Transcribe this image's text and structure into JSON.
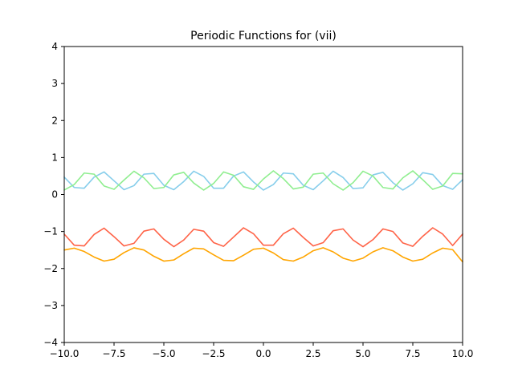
{
  "chart_data": {
    "type": "line",
    "title": "Periodic Functions for (vii)",
    "xlabel": "",
    "ylabel": "",
    "xlim": [
      -10,
      10
    ],
    "ylim": [
      -4,
      4
    ],
    "grid": false,
    "legend": "none",
    "x_ticks": [
      -10,
      -7.5,
      -5,
      -2.5,
      0,
      2.5,
      5,
      7.5,
      10
    ],
    "x_tick_labels": [
      "−10.0",
      "−7.5",
      "−5.0",
      "−2.5",
      "0.0",
      "2.5",
      "5.0",
      "7.5",
      "10.0"
    ],
    "y_ticks": [
      -4,
      -3,
      -2,
      -1,
      0,
      1,
      2,
      3,
      4
    ],
    "y_tick_labels": [
      "−4",
      "−3",
      "−2",
      "−1",
      "0",
      "1",
      "2",
      "3",
      "4"
    ],
    "x": [
      -10,
      -9.5,
      -9,
      -8.5,
      -8,
      -7.5,
      -7,
      -6.5,
      -6,
      -5.5,
      -5,
      -4.5,
      -4,
      -3.5,
      -3,
      -2.5,
      -2,
      -1.5,
      -1,
      -0.5,
      0,
      0.5,
      1,
      1.5,
      2,
      2.5,
      3,
      3.5,
      4,
      4.5,
      5,
      5.5,
      6,
      6.5,
      7,
      7.5,
      8,
      8.5,
      9,
      9.5,
      10
    ],
    "series": [
      {
        "color": "#87ceeb",
        "values": [
          0.47,
          0.19,
          0.17,
          0.47,
          0.61,
          0.37,
          0.13,
          0.24,
          0.55,
          0.57,
          0.25,
          0.13,
          0.35,
          0.63,
          0.49,
          0.17,
          0.17,
          0.5,
          0.61,
          0.34,
          0.12,
          0.27,
          0.58,
          0.56,
          0.25,
          0.13,
          0.37,
          0.63,
          0.46,
          0.16,
          0.18,
          0.53,
          0.6,
          0.32,
          0.12,
          0.29,
          0.59,
          0.54,
          0.24,
          0.14,
          0.4
        ]
      },
      {
        "color": "#90ee90",
        "values": [
          0.12,
          0.27,
          0.58,
          0.55,
          0.23,
          0.14,
          0.39,
          0.63,
          0.45,
          0.16,
          0.19,
          0.53,
          0.6,
          0.31,
          0.12,
          0.3,
          0.61,
          0.52,
          0.21,
          0.14,
          0.42,
          0.64,
          0.43,
          0.15,
          0.2,
          0.55,
          0.58,
          0.29,
          0.12,
          0.32,
          0.63,
          0.5,
          0.19,
          0.15,
          0.45,
          0.64,
          0.4,
          0.14,
          0.23,
          0.57,
          0.56
        ]
      },
      {
        "color": "#ff6347",
        "values": [
          -1.07,
          -1.37,
          -1.39,
          -1.08,
          -0.91,
          -1.14,
          -1.39,
          -1.32,
          -0.99,
          -0.93,
          -1.21,
          -1.41,
          -1.23,
          -0.94,
          -0.99,
          -1.3,
          -1.4,
          -1.15,
          -0.9,
          -1.06,
          -1.37,
          -1.37,
          -1.06,
          -0.91,
          -1.16,
          -1.39,
          -1.3,
          -0.98,
          -0.93,
          -1.23,
          -1.41,
          -1.22,
          -0.93,
          -1,
          -1.31,
          -1.4,
          -1.13,
          -0.9,
          -1.07,
          -1.38,
          -1.07
        ]
      },
      {
        "color": "#ffa500",
        "values": [
          -1.5,
          -1.45,
          -1.54,
          -1.69,
          -1.8,
          -1.75,
          -1.57,
          -1.44,
          -1.5,
          -1.67,
          -1.8,
          -1.77,
          -1.6,
          -1.45,
          -1.47,
          -1.63,
          -1.78,
          -1.79,
          -1.64,
          -1.48,
          -1.45,
          -1.58,
          -1.76,
          -1.8,
          -1.69,
          -1.52,
          -1.44,
          -1.55,
          -1.72,
          -1.8,
          -1.72,
          -1.55,
          -1.44,
          -1.52,
          -1.69,
          -1.8,
          -1.75,
          -1.58,
          -1.45,
          -1.49,
          -1.82
        ]
      }
    ]
  }
}
